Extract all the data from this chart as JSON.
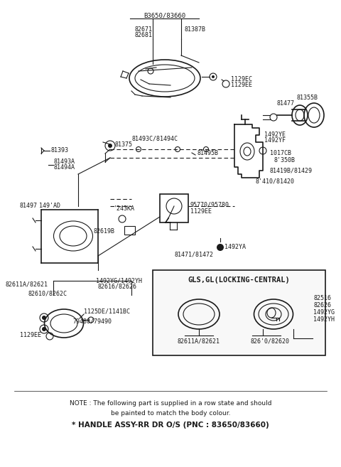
{
  "background_color": "#ffffff",
  "line_color": "#1a1a1a",
  "text_color": "#1a1a1a",
  "fig_width": 4.8,
  "fig_height": 6.57,
  "dpi": 100,
  "note_line1": "NOTE : The following part is supplied in a row state and should",
  "note_line2": "be painted to match the body colour.",
  "note_line3": "* HANDLE ASSY-RR DR O/S (PNC : 83650/83660)"
}
